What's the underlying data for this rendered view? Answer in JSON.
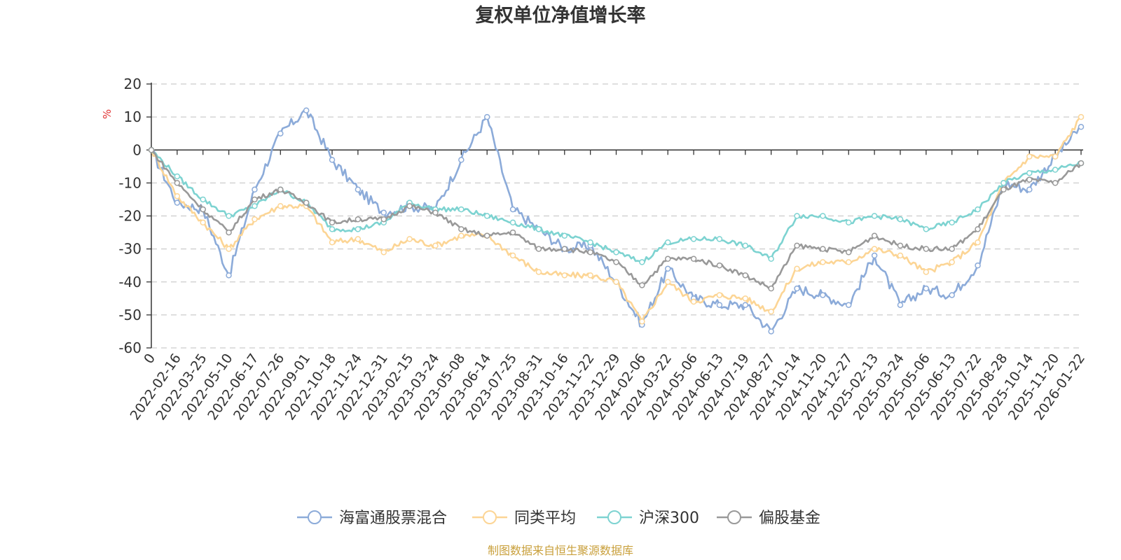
{
  "chart_data": {
    "type": "line",
    "title": "复权单位净值增长率",
    "ylabel": "%",
    "ylim": [
      -60,
      20
    ],
    "yticks": [
      20,
      10,
      0,
      -10,
      -20,
      -30,
      -40,
      -50,
      -60
    ],
    "categories": [
      "0",
      "2022-02-16",
      "2022-03-25",
      "2022-05-10",
      "2022-06-17",
      "2022-07-26",
      "2022-09-01",
      "2022-10-18",
      "2022-11-24",
      "2022-12-31",
      "2023-02-15",
      "2023-03-24",
      "2023-05-08",
      "2023-06-14",
      "2023-07-25",
      "2023-08-31",
      "2023-10-16",
      "2023-11-22",
      "2023-12-29",
      "2024-02-06",
      "2024-03-22",
      "2024-05-06",
      "2024-06-13",
      "2024-07-19",
      "2024-08-27",
      "2024-10-14",
      "2024-11-20",
      "2024-12-27",
      "2025-02-13",
      "2025-03-24",
      "2025-05-06",
      "2025-06-13",
      "2025-07-22",
      "2025-08-28",
      "2025-10-14",
      "2025-11-20",
      "2026-01-22"
    ],
    "series": [
      {
        "name": "海富通股票混合",
        "color": "#8cabd9",
        "values": [
          0,
          -16,
          -18,
          -38,
          -12,
          5,
          12,
          -3,
          -12,
          -19,
          -17,
          -18,
          -3,
          10,
          -18,
          -24,
          -30,
          -29,
          -40,
          -53,
          -36,
          -45,
          -47,
          -47,
          -55,
          -42,
          -44,
          -47,
          -32,
          -47,
          -42,
          -44,
          -35,
          -10,
          -12,
          -2,
          7
        ]
      },
      {
        "name": "同类平均",
        "color": "#fcd595",
        "values": [
          0,
          -14,
          -22,
          -30,
          -21,
          -17,
          -17,
          -28,
          -27,
          -31,
          -27,
          -29,
          -26,
          -26,
          -32,
          -37,
          -38,
          -38,
          -40,
          -52,
          -40,
          -46,
          -44,
          -45,
          -49,
          -36,
          -34,
          -34,
          -30,
          -32,
          -37,
          -34,
          -28,
          -10,
          -2,
          -2,
          10
        ]
      },
      {
        "name": "沪深300",
        "color": "#7dd3d1",
        "values": [
          0,
          -8,
          -15,
          -20,
          -17,
          -12,
          -16,
          -24,
          -24,
          -22,
          -16,
          -18,
          -18,
          -20,
          -22,
          -24,
          -26,
          -28,
          -31,
          -34,
          -28,
          -27,
          -27,
          -29,
          -33,
          -20,
          -20,
          -22,
          -20,
          -21,
          -24,
          -22,
          -18,
          -10,
          -7,
          -6,
          -4
        ]
      },
      {
        "name": "偏股基金",
        "color": "#999999",
        "values": [
          0,
          -10,
          -18,
          -25,
          -15,
          -12,
          -16,
          -22,
          -21,
          -21,
          -17,
          -19,
          -24,
          -26,
          -25,
          -30,
          -30,
          -31,
          -34,
          -41,
          -33,
          -33,
          -35,
          -38,
          -42,
          -29,
          -30,
          -31,
          -26,
          -29,
          -30,
          -30,
          -24,
          -12,
          -9,
          -10,
          -4
        ]
      }
    ],
    "source_note": "制图数据来自恒生聚源数据库",
    "source_color": "#c9a03c",
    "unit_color": "#e03030"
  }
}
